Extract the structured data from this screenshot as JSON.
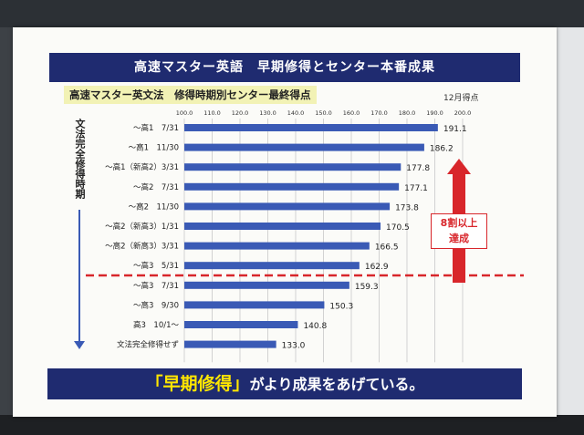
{
  "banner_title": "高速マスター英語　早期修得とセンター本番成果",
  "footer": {
    "highlight": "「早期修得」",
    "rest": "がより成果をあげている。"
  },
  "callout": {
    "line1": "8割以上",
    "line2": "達成"
  },
  "colors": {
    "banner": "#1f2b70",
    "bar": "#3a5ab5",
    "highlight": "#ffe600",
    "accent_red": "#d8262b",
    "subtitle_bg": "#f2f2b5"
  },
  "chart_data": {
    "type": "bar",
    "orientation": "horizontal",
    "title": "高速マスター英文法　修得時期別センター最終得点",
    "ylabel": "文法完全修得時期",
    "unit_label": "12月得点",
    "xlim": [
      100,
      200
    ],
    "xticks": [
      "100.0",
      "110.0",
      "120.0",
      "130.0",
      "140.0",
      "150.0",
      "160.0",
      "170.0",
      "180.0",
      "190.0",
      "200.0"
    ],
    "grid": true,
    "categories": [
      "〜高1　7/31",
      "〜高1　11/30",
      "〜高1（新高2）3/31",
      "〜高2　7/31",
      "〜高2　11/30",
      "〜高2（新高3）1/31",
      "〜高2（新高3）3/31",
      "〜高3　5/31",
      "〜高3　7/31",
      "〜高3　9/30",
      "高3　10/1〜",
      "文法完全修得せず"
    ],
    "values": [
      191.1,
      186.2,
      177.8,
      177.1,
      173.8,
      170.5,
      166.5,
      162.9,
      159.3,
      150.3,
      140.8,
      133.0
    ],
    "value_labels": [
      "191.1",
      "186.2",
      "177.8",
      "177.1",
      "173.8",
      "170.5",
      "166.5",
      "162.9",
      "159.3",
      "150.3",
      "140.8",
      "133.0"
    ],
    "threshold_after_category": 7
  }
}
